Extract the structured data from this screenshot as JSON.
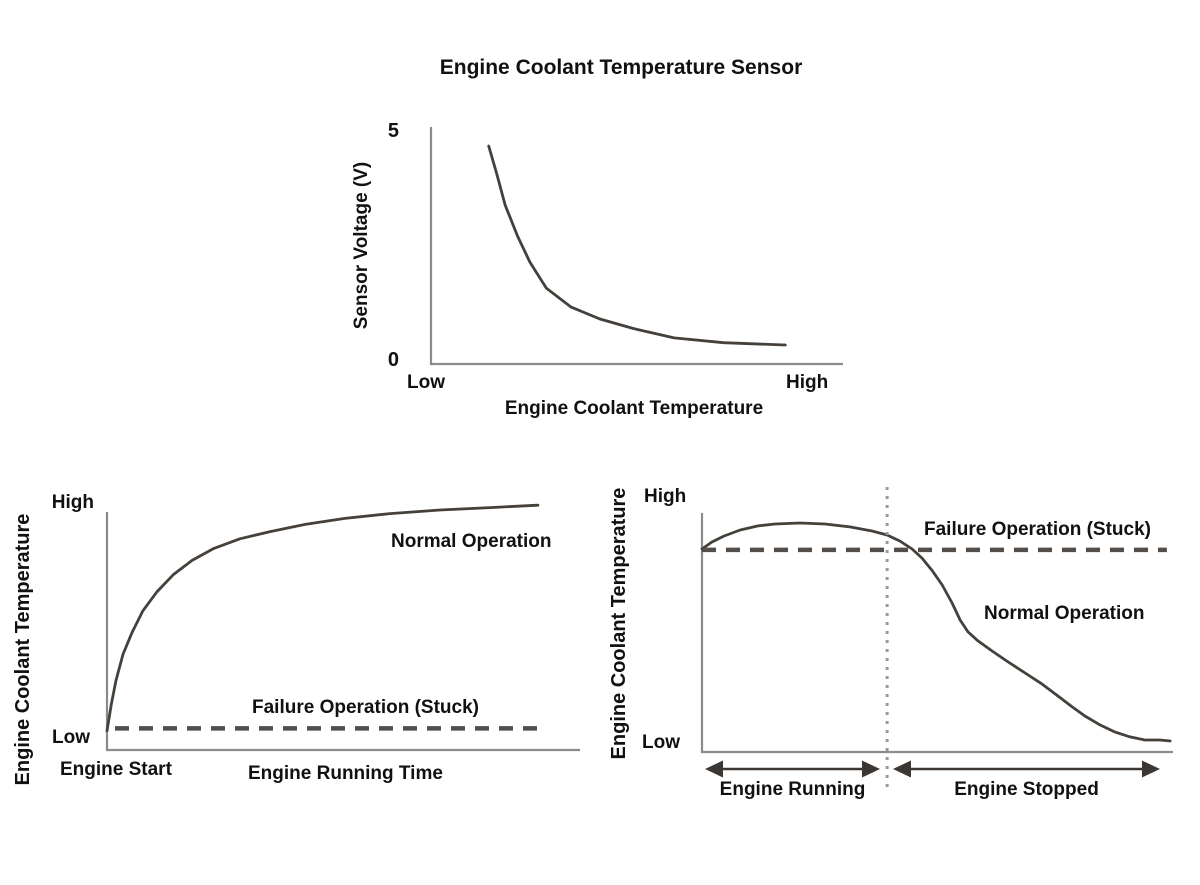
{
  "figure": {
    "background_color": "#ffffff",
    "text_color": "#111111",
    "curve_color": "#46403b",
    "axis_color": "#8b8b8b",
    "dashed_line_color": "#534e49",
    "dotted_line_color": "#9a9a9a"
  },
  "chart_data": [
    {
      "id": "sensor-voltage-vs-coolant-temperature",
      "type": "line",
      "title": "Engine Coolant Temperature Sensor",
      "xlabel": "Engine Coolant Temperature",
      "ylabel": "Sensor Voltage (V)",
      "x_ticks": {
        "left": "Low",
        "right": "High"
      },
      "y_ticks": {
        "top": "5",
        "bottom": "0"
      },
      "ylim": [
        0,
        5
      ],
      "grid": false,
      "legend": "none",
      "series": [
        {
          "name": "Sensor Voltage",
          "style": "solid",
          "x": [
            0.14,
            0.16,
            0.18,
            0.21,
            0.24,
            0.28,
            0.34,
            0.41,
            0.49,
            0.59,
            0.71,
            0.86
          ],
          "y": [
            4.6,
            4.0,
            3.35,
            2.7,
            2.15,
            1.6,
            1.2,
            0.95,
            0.75,
            0.55,
            0.45,
            0.4
          ]
        }
      ]
    },
    {
      "id": "warmup-normal-vs-stuck",
      "type": "line",
      "title": "",
      "xlabel": "Engine Running Time",
      "x_origin_label": "Engine Start",
      "ylabel": "Engine Coolant Temperature",
      "y_ticks": {
        "top": "High",
        "bottom": "Low"
      },
      "ylim": [
        0,
        1
      ],
      "grid": false,
      "legend": "inline-annotations",
      "series": [
        {
          "name": "Normal Operation",
          "style": "solid",
          "x": [
            0,
            0.009,
            0.019,
            0.034,
            0.053,
            0.076,
            0.106,
            0.14,
            0.18,
            0.226,
            0.281,
            0.345,
            0.419,
            0.503,
            0.598,
            0.704,
            0.81,
            0.911
          ],
          "y": [
            0.08,
            0.19,
            0.29,
            0.4,
            0.49,
            0.58,
            0.66,
            0.73,
            0.79,
            0.84,
            0.88,
            0.91,
            0.94,
            0.965,
            0.985,
            1.0,
            1.01,
            1.02
          ]
        },
        {
          "name": "Failure Operation (Stuck)",
          "style": "dashed",
          "x": [
            0.017,
            0.911
          ],
          "y": [
            0.09,
            0.09
          ]
        }
      ]
    },
    {
      "id": "cooldown-normal-vs-stuck",
      "type": "line",
      "title": "",
      "ylabel": "Engine Coolant Temperature",
      "y_ticks": {
        "top": "High",
        "bottom": "Low"
      },
      "ylim": [
        0,
        1
      ],
      "grid": false,
      "legend": "inline-annotations",
      "divider_x": 0.393,
      "phases": [
        {
          "label": "Engine Running",
          "x_start": 0.0,
          "x_end": 0.378
        },
        {
          "label": "Engine Stopped",
          "x_start": 0.406,
          "x_end": 0.972
        }
      ],
      "series": [
        {
          "name": "Normal Operation",
          "style": "solid",
          "x": [
            0,
            0.021,
            0.047,
            0.081,
            0.119,
            0.155,
            0.208,
            0.261,
            0.314,
            0.361,
            0.393,
            0.42,
            0.446,
            0.467,
            0.488,
            0.51,
            0.531,
            0.548,
            0.565,
            0.586,
            0.616,
            0.65,
            0.686,
            0.722,
            0.756,
            0.786,
            0.813,
            0.845,
            0.877,
            0.909,
            0.94,
            0.972,
            0.994
          ],
          "y": [
            0.846,
            0.875,
            0.9,
            0.925,
            0.942,
            0.95,
            0.954,
            0.95,
            0.938,
            0.921,
            0.904,
            0.879,
            0.846,
            0.808,
            0.758,
            0.696,
            0.621,
            0.55,
            0.5,
            0.463,
            0.421,
            0.375,
            0.329,
            0.283,
            0.233,
            0.188,
            0.15,
            0.113,
            0.083,
            0.063,
            0.05,
            0.05,
            0.046
          ]
        },
        {
          "name": "Failure Operation (Stuck)",
          "style": "dashed",
          "x": [
            0,
            0.987
          ],
          "y": [
            0.842,
            0.842
          ]
        }
      ]
    }
  ]
}
